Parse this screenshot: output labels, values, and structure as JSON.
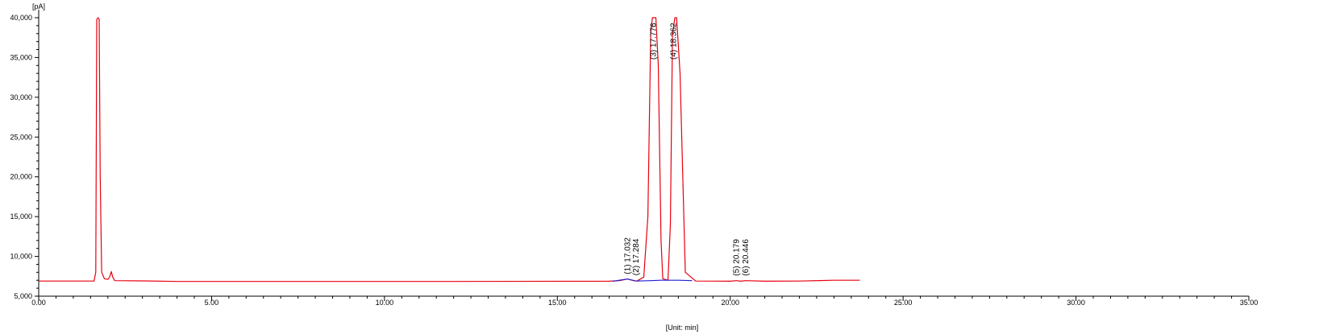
{
  "chart_data": {
    "type": "line",
    "ylabel": "[pA]",
    "xlabel": "[Unit: min]",
    "xlim": [
      0,
      35
    ],
    "ylim": [
      5000,
      40000
    ],
    "x_ticks": [
      0,
      5,
      10,
      15,
      20,
      25,
      30,
      35
    ],
    "x_tick_labels": [
      "0.00",
      "5.00",
      "10.00",
      "15.00",
      "20.00",
      "25.00",
      "30.00",
      "35.00"
    ],
    "y_ticks": [
      5000,
      10000,
      15000,
      20000,
      25000,
      30000,
      35000,
      40000
    ],
    "y_tick_labels": [
      "5,000",
      "10,000",
      "15,000",
      "20,000",
      "25,000",
      "30,000",
      "35,000",
      "40,000"
    ],
    "grid": false,
    "legend": "none",
    "colors": {
      "signal": "#e8000f",
      "baseline": "#1f1fd6",
      "axis": "#000000"
    },
    "series": [
      {
        "x": [
          0,
          1.6,
          1.65,
          1.68,
          1.72,
          1.75,
          1.78,
          1.82,
          1.9,
          2.0,
          2.05,
          2.1,
          2.14,
          2.2,
          3.0,
          4.0,
          8.0,
          12.0,
          16.5,
          16.8,
          17.03,
          17.2,
          17.3,
          17.5,
          17.62,
          17.7,
          17.75,
          17.85,
          17.92,
          18.0,
          18.05,
          18.2,
          18.27,
          18.33,
          18.4,
          18.45,
          18.55,
          18.7,
          19.0,
          20.0,
          20.18,
          20.3,
          20.45,
          21.0,
          22.0,
          23.0,
          23.75
        ],
        "y": [
          6900,
          6900,
          8000,
          39800,
          40000,
          39800,
          20000,
          8000,
          7200,
          7100,
          7400,
          8100,
          7400,
          6950,
          6920,
          6850,
          6850,
          6850,
          6880,
          6950,
          7150,
          6950,
          6900,
          7400,
          15000,
          38000,
          40000,
          40000,
          34000,
          12000,
          7200,
          7000,
          14000,
          38000,
          40000,
          40000,
          33000,
          8000,
          6900,
          6880,
          6950,
          6880,
          6950,
          6880,
          6900,
          7000,
          7000
        ]
      },
      {
        "x": [
          16.6,
          17.032,
          17.284,
          17.7,
          18.0,
          18.5,
          18.9
        ],
        "y": [
          6880,
          7150,
          6900,
          6950,
          7000,
          7000,
          6950
        ]
      }
    ],
    "peak_labels": [
      {
        "label": "(1) 17.032",
        "x": 17.032,
        "y": 7150
      },
      {
        "label": "(2) 17.284",
        "x": 17.284,
        "y": 7000
      },
      {
        "label": "(3) 17.776",
        "x": 17.776,
        "y": 40000
      },
      {
        "label": "(4) 18.362",
        "x": 18.362,
        "y": 40000
      },
      {
        "label": "(5) 20.179",
        "x": 20.179,
        "y": 6950
      },
      {
        "label": "(6) 20.446",
        "x": 20.446,
        "y": 6950
      }
    ]
  }
}
